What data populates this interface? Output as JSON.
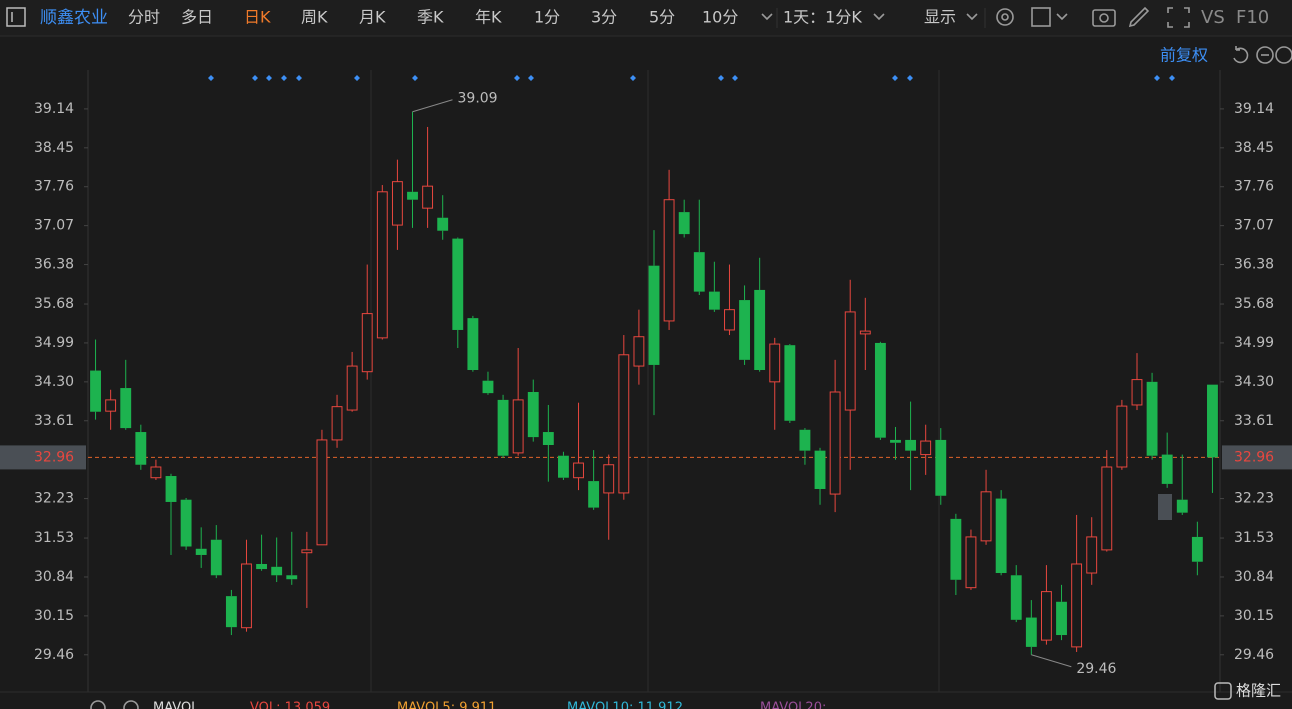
{
  "toolbar": {
    "stock": "顺鑫农业",
    "tabs": [
      "分时",
      "多日",
      "日K",
      "周K",
      "月K",
      "季K",
      "年K",
      "1分",
      "3分",
      "5分",
      "10分"
    ],
    "period": "1天：1分K",
    "display": "显示",
    "vs": "VS",
    "f10": "F10"
  },
  "chart_data": {
    "type": "candlestick",
    "adjust": "前复权",
    "open": [
      34.5,
      33.78,
      34.19,
      33.41,
      32.6,
      32.63,
      32.21,
      31.34,
      31.5,
      30.5,
      29.94,
      31.07,
      31.02,
      30.87,
      31.27,
      31.41,
      33.27,
      33.8,
      34.48,
      35.08,
      37.08,
      37.67,
      37.38,
      37.21,
      36.84,
      35.43,
      34.32,
      33.98,
      33.04,
      34.12,
      33.41,
      32.99,
      32.6,
      32.54,
      32.33,
      32.33,
      34.58,
      36.36,
      35.38,
      37.31,
      36.6,
      35.9,
      35.22,
      35.75,
      35.93,
      34.3,
      34.95,
      33.45,
      33.08,
      32.31,
      33.8,
      35.15,
      34.99,
      33.27,
      33.27,
      33.01,
      33.27,
      31.87,
      30.65,
      31.48,
      32.23,
      30.87,
      30.12,
      29.72,
      30.4,
      29.6,
      30.91,
      31.32,
      32.79,
      33.89,
      34.3,
      33.01,
      32.21,
      31.55,
      34.25
    ],
    "high": [
      35.05,
      34.16,
      34.69,
      33.54,
      32.92,
      32.67,
      32.24,
      31.72,
      31.76,
      30.61,
      31.5,
      31.59,
      31.54,
      31.64,
      31.64,
      33.45,
      34.07,
      34.83,
      36.38,
      37.79,
      38.24,
      39.09,
      38.82,
      37.61,
      36.86,
      35.47,
      34.48,
      34.07,
      34.9,
      34.34,
      33.89,
      33.06,
      33.93,
      33.09,
      33.01,
      35.13,
      35.58,
      36.99,
      38.06,
      37.53,
      37.53,
      36.43,
      36.38,
      36.01,
      36.5,
      35.08,
      34.97,
      33.48,
      33.13,
      34.69,
      36.11,
      35.79,
      35.01,
      33.5,
      33.95,
      33.54,
      33.48,
      31.96,
      31.68,
      32.74,
      32.38,
      31.05,
      30.43,
      31.05,
      30.7,
      31.94,
      31.9,
      33.09,
      33.98,
      34.81,
      34.46,
      33.4,
      33.01,
      31.82,
      34.25
    ],
    "low": [
      33.63,
      33.45,
      33.45,
      32.74,
      32.56,
      31.23,
      31.32,
      31.0,
      30.82,
      29.81,
      29.87,
      30.95,
      30.75,
      30.7,
      30.29,
      31.41,
      33.13,
      33.77,
      34.34,
      35.05,
      36.64,
      37.03,
      37.03,
      36.82,
      34.9,
      34.48,
      34.07,
      32.95,
      32.99,
      33.24,
      32.53,
      32.56,
      32.38,
      32.03,
      31.5,
      32.21,
      34.25,
      33.71,
      35.22,
      36.86,
      35.84,
      35.54,
      35.13,
      34.6,
      34.48,
      33.45,
      33.57,
      32.83,
      32.12,
      31.99,
      32.74,
      34.51,
      33.27,
      32.92,
      32.38,
      32.65,
      32.12,
      30.52,
      30.61,
      31.41,
      30.87,
      30.04,
      29.46,
      29.64,
      29.72,
      29.51,
      30.7,
      31.29,
      32.74,
      33.8,
      32.92,
      32.42,
      31.94,
      30.87,
      32.33
    ],
    "close": [
      33.77,
      33.98,
      33.48,
      32.83,
      32.79,
      32.17,
      31.38,
      31.23,
      30.87,
      29.95,
      31.07,
      30.98,
      30.87,
      30.8,
      31.32,
      33.27,
      33.86,
      34.58,
      35.51,
      37.67,
      37.85,
      37.53,
      37.77,
      36.98,
      35.22,
      34.51,
      34.1,
      32.99,
      33.98,
      33.32,
      33.18,
      32.6,
      32.86,
      32.07,
      32.83,
      34.78,
      35.1,
      34.6,
      37.53,
      36.92,
      35.9,
      35.58,
      35.58,
      34.69,
      34.51,
      34.97,
      33.61,
      33.08,
      32.4,
      34.12,
      35.54,
      35.2,
      33.31,
      33.22,
      33.08,
      33.25,
      32.28,
      30.79,
      31.55,
      32.35,
      30.91,
      30.08,
      29.6,
      30.58,
      29.81,
      31.07,
      31.55,
      32.79,
      33.87,
      34.34,
      32.99,
      32.49,
      31.98,
      31.11,
      32.96
    ],
    "up_color": "#e8473f",
    "down_color": "#1db34f",
    "ylim": [
      28.8,
      39.83
    ],
    "yticks": [
      39.14,
      38.45,
      37.76,
      37.07,
      36.38,
      35.68,
      34.99,
      {
        "value": 34.3,
        "label": "34.30"
      },
      33.61,
      32.23,
      31.53,
      30.84,
      30.15,
      29.46
    ],
    "last_price": 32.96,
    "max_label": 39.09,
    "min_label": 29.46
  },
  "volume_bar": {
    "title": "MAVOL",
    "vol": "VOL: 13,059",
    "mavol5": "MAVOL5: 9,911",
    "mavol10": "MAVOL10: 11,912",
    "mavol20": "MAVOL20:"
  },
  "logo": "格隆汇"
}
